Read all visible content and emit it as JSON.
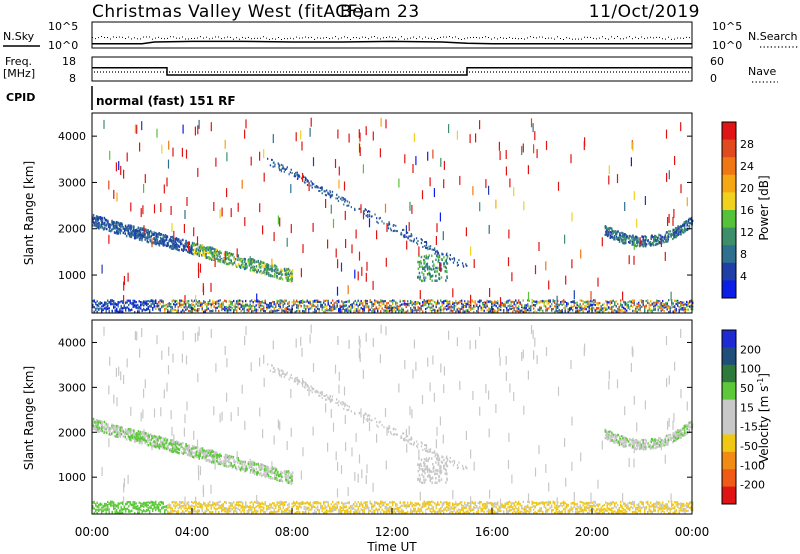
{
  "header": {
    "title": "Christmas Valley West (fitACF)",
    "beam": "Beam 23",
    "date": "11/Oct/2019"
  },
  "top_panels": {
    "nsky_label": "N.Sky",
    "nsearch_label": "N.Search",
    "noise_ticks": [
      "10^5",
      "10^0"
    ],
    "freq_label": "Freq.",
    "freq_unit": "[MHz]",
    "freq_ticks": [
      "18",
      "8"
    ],
    "nave_label": "Nave",
    "nave_ticks": [
      "60",
      "0"
    ],
    "cpid_label": "CPID",
    "cpid_value": "normal (fast) 151 RF"
  },
  "colors": {
    "power_scale": [
      "#0a1ee6",
      "#1f3fa8",
      "#2f6f8f",
      "#3d8f6a",
      "#56c23a",
      "#f0d21e",
      "#f5a814",
      "#f07814",
      "#e04a1e",
      "#e01414"
    ],
    "velocity_scale": [
      "#1e2ad2",
      "#1f4e7a",
      "#2d7a3a",
      "#5cc83a",
      "#c8c8c8",
      "#c8c8c8",
      "#f0c814",
      "#f08c14",
      "#f05a14",
      "#e01414"
    ]
  },
  "chart_data": [
    {
      "type": "heatmap",
      "ylabel": "Slant Range [km]",
      "y_ticks": [
        "4000",
        "3000",
        "2000",
        "1000"
      ],
      "ylim": [
        180,
        4500
      ],
      "xlim": [
        0,
        24
      ],
      "colorbar": {
        "label": "Power [dB]",
        "ticks": [
          "28",
          "24",
          "20",
          "16",
          "12",
          "8",
          "4"
        ],
        "range": [
          0,
          30
        ]
      },
      "features": [
        {
          "name": "near-range ground scatter band",
          "hours": [
            2.5,
            24
          ],
          "range_km": [
            250,
            400
          ],
          "value": 16
        },
        {
          "name": "evening ionospheric arc",
          "hours": [
            0,
            8
          ],
          "range_km": [
            900,
            2400
          ],
          "value": 10
        },
        {
          "name": "mid-night trace",
          "hours": [
            7,
            15
          ],
          "range_km": [
            1500,
            3600
          ],
          "value": 6
        },
        {
          "name": "dawn arc",
          "hours": [
            20.5,
            24
          ],
          "range_km": [
            1700,
            2500
          ],
          "value": 8
        }
      ]
    },
    {
      "type": "heatmap",
      "ylabel": "Slant Range [km]",
      "xlabel": "Time UT",
      "x_ticks": [
        "00:00",
        "04:00",
        "08:00",
        "12:00",
        "16:00",
        "20:00",
        "00:00"
      ],
      "y_ticks": [
        "4000",
        "3000",
        "2000",
        "1000"
      ],
      "ylim": [
        180,
        4500
      ],
      "xlim": [
        0,
        24
      ],
      "colorbar": {
        "label": "Velocity [m s",
        "label_sup": "-1",
        "label_end": "]",
        "ticks": [
          "200",
          "100",
          "50",
          "15",
          "-15",
          "-50",
          "-100",
          "-200"
        ],
        "range": [
          -250,
          250
        ]
      }
    }
  ],
  "noise_series": {
    "hours": [
      0,
      2,
      2.5,
      4,
      6,
      8,
      10,
      12,
      14,
      15,
      16,
      18,
      20,
      22,
      24
    ],
    "nsky": [
      0.35,
      0.35,
      0.5,
      0.55,
      0.55,
      0.5,
      0.5,
      0.55,
      0.5,
      0.4,
      0.35,
      0.35,
      0.35,
      0.35,
      0.35
    ]
  },
  "freq_series": {
    "hours": [
      0,
      3,
      3,
      15,
      15,
      24
    ],
    "mhz": [
      13.5,
      13.5,
      10.5,
      10.5,
      13.5,
      13.5
    ]
  }
}
